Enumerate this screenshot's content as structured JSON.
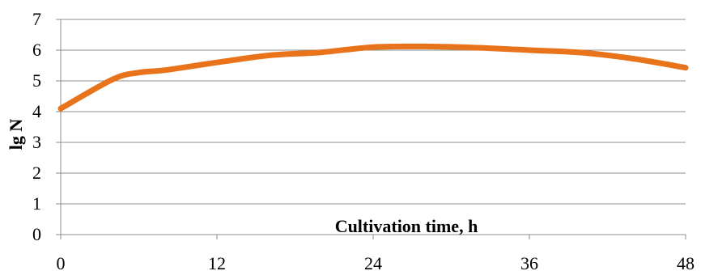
{
  "chart_data": {
    "type": "line",
    "xlabel": "Cultivation time, h",
    "ylabel": "lg N",
    "x_ticks": [
      0,
      12,
      24,
      36,
      48
    ],
    "y_ticks": [
      0,
      1,
      2,
      3,
      4,
      5,
      6,
      7
    ],
    "xlim": [
      0,
      48
    ],
    "ylim": [
      0,
      7
    ],
    "grid": "horizontal",
    "legend": "none",
    "series": [
      {
        "color": "#E8731A",
        "smooth": true,
        "x": [
          0,
          4,
          6,
          8,
          12,
          16,
          20,
          24,
          28,
          32,
          36,
          40,
          44,
          48
        ],
        "y": [
          4.1,
          5.05,
          5.27,
          5.35,
          5.6,
          5.83,
          5.93,
          6.1,
          6.12,
          6.08,
          6.0,
          5.92,
          5.72,
          5.43
        ]
      }
    ]
  },
  "colors": {
    "grid": "#8c8c8c",
    "axis": "#8c8c8c",
    "line": "#E8731A"
  }
}
